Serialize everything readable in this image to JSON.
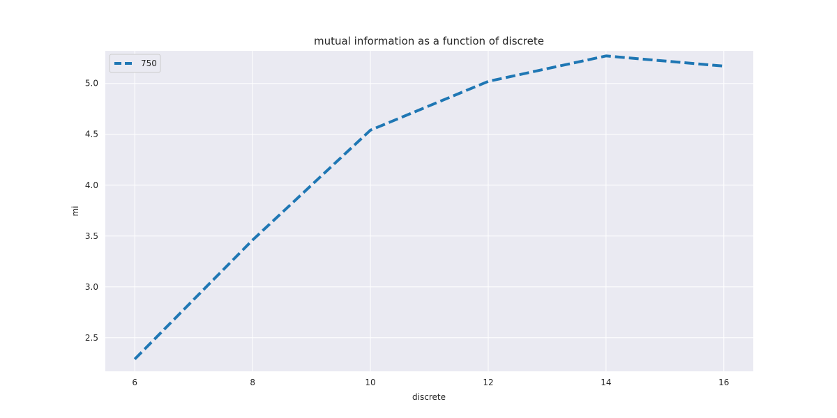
{
  "chart_data": {
    "type": "line",
    "title": "mutual information as a function of discrete",
    "xlabel": "discrete",
    "ylabel": "mi",
    "xlim": [
      5.5,
      16.5
    ],
    "ylim": [
      2.17,
      5.32
    ],
    "x_ticks": [
      6,
      8,
      10,
      12,
      14,
      16
    ],
    "y_ticks": [
      2.5,
      3.0,
      3.5,
      4.0,
      4.5,
      5.0
    ],
    "y_tick_labels": [
      "2.5",
      "3.0",
      "3.5",
      "4.0",
      "4.5",
      "5.0"
    ],
    "grid": true,
    "legend_position": "top-left",
    "x": [
      6,
      8,
      10,
      12,
      14,
      16
    ],
    "series": [
      {
        "name": "750",
        "values": [
          2.29,
          3.46,
          4.54,
          5.02,
          5.27,
          5.17
        ],
        "color": "#1f77b4",
        "style": "dashed"
      }
    ]
  }
}
